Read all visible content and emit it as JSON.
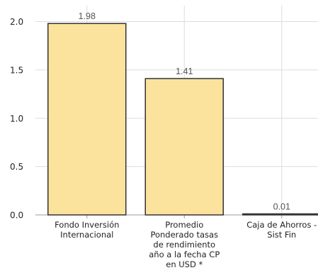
{
  "chart_data": {
    "type": "bar",
    "title": "",
    "xlabel": "",
    "ylabel": "",
    "categories": [
      [
        "Fondo Inversión",
        "Internacional"
      ],
      [
        "Promedio",
        "Ponderado tasas",
        "de rendimiento",
        "año a la fecha CP",
        "en USD *"
      ],
      [
        "Caja de Ahorros -",
        "Sist Fin"
      ]
    ],
    "values": [
      1.98,
      1.41,
      0.01
    ],
    "data_labels": [
      "1.98",
      "1.41",
      "0.01"
    ],
    "yticks": [
      "0.0",
      "0.5",
      "1.0",
      "1.5",
      "2.0"
    ],
    "ytick_values": [
      0,
      0.5,
      1.0,
      1.5,
      2.0
    ],
    "ylim": [
      0,
      2.2
    ],
    "grid": true,
    "legend": "none",
    "colors": {
      "bar_fill": "#FBE39E",
      "bar_stroke": "#333333",
      "grid": "#DDDDDD",
      "axis": "#9A9A9A"
    }
  }
}
